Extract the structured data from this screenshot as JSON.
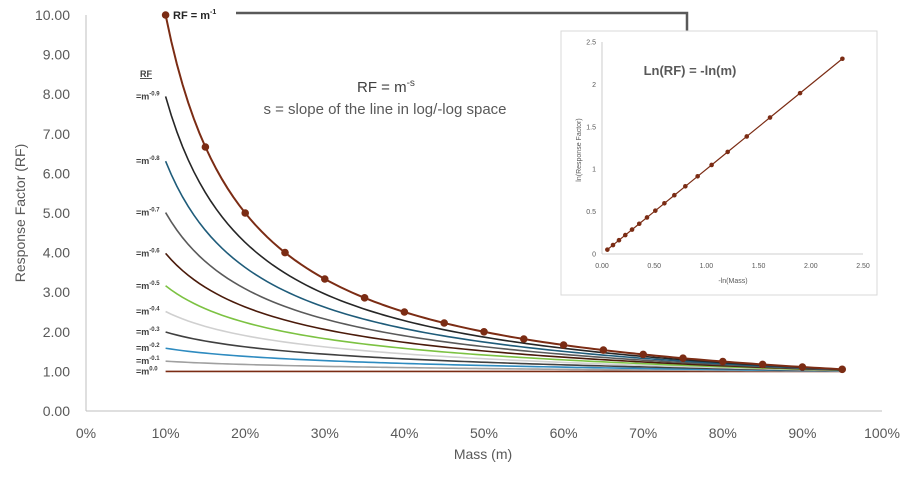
{
  "chart_data": [
    {
      "type": "line",
      "title": "",
      "xlabel": "Mass (m)",
      "ylabel": "Response Factor (RF)",
      "x_ticks": [
        "0%",
        "10%",
        "20%",
        "30%",
        "40%",
        "50%",
        "60%",
        "70%",
        "80%",
        "90%",
        "100%"
      ],
      "y_ticks": [
        "0.00",
        "1.00",
        "2.00",
        "3.00",
        "4.00",
        "5.00",
        "6.00",
        "7.00",
        "8.00",
        "9.00",
        "10.00"
      ],
      "xlim": [
        0,
        1.0
      ],
      "ylim": [
        0,
        10
      ],
      "legend_title": "RF",
      "x": [
        0.1,
        0.15,
        0.2,
        0.25,
        0.3,
        0.35,
        0.4,
        0.45,
        0.5,
        0.55,
        0.6,
        0.65,
        0.7,
        0.75,
        0.8,
        0.85,
        0.9,
        0.95
      ],
      "series": [
        {
          "name": "=m",
          "exp": "-1",
          "s": 1.0,
          "color": "#7b2c14",
          "markers": true
        },
        {
          "name": "=m",
          "exp": "-0.9",
          "s": 0.9,
          "color": "#262626",
          "markers": false
        },
        {
          "name": "=m",
          "exp": "-0.8",
          "s": 0.8,
          "color": "#1f5c7a",
          "markers": false
        },
        {
          "name": "=m",
          "exp": "-0.7",
          "s": 0.7,
          "color": "#5a5a5a",
          "markers": false
        },
        {
          "name": "=m",
          "exp": "-0.6",
          "s": 0.6,
          "color": "#4a1a0a",
          "markers": false
        },
        {
          "name": "=m",
          "exp": "-0.5",
          "s": 0.5,
          "color": "#7cc242",
          "markers": false
        },
        {
          "name": "=m",
          "exp": "-0.4",
          "s": 0.4,
          "color": "#d0d0d0",
          "markers": false
        },
        {
          "name": "=m",
          "exp": "-0.3",
          "s": 0.3,
          "color": "#404040",
          "markers": false
        },
        {
          "name": "=m",
          "exp": "-0.2",
          "s": 0.2,
          "color": "#2e8bc0",
          "markers": false
        },
        {
          "name": "=m",
          "exp": "-0.1",
          "s": 0.1,
          "color": "#a0a0a0",
          "markers": false
        },
        {
          "name": "=m",
          "exp": "0.0",
          "s": 0.0,
          "color": "#7b2c14",
          "markers": false
        }
      ],
      "annotations": {
        "rf_top_label": "RF = m",
        "rf_top_exp": "-1",
        "equation_main": "RF = m",
        "equation_exp": "-s",
        "equation_sub": "s = slope of the line in log/-log space"
      }
    },
    {
      "type": "line",
      "title": "Ln(RF) = -ln(m)",
      "xlabel": "-ln(Mass)",
      "ylabel": "ln(Response Factor)",
      "x_ticks": [
        "0.00",
        "0.50",
        "1.00",
        "1.50",
        "2.00",
        "2.50"
      ],
      "y_ticks": [
        "0",
        "0.5",
        "1",
        "1.5",
        "2",
        "2.5"
      ],
      "xlim": [
        0,
        2.5
      ],
      "ylim": [
        0,
        2.5
      ],
      "x": [
        0.0513,
        0.1054,
        0.1625,
        0.2231,
        0.2877,
        0.3567,
        0.4308,
        0.5108,
        0.5978,
        0.6931,
        0.7985,
        0.9163,
        1.0498,
        1.204,
        1.3863,
        1.6094,
        1.8971,
        2.3026
      ],
      "y": [
        0.0513,
        0.1054,
        0.1625,
        0.2231,
        0.2877,
        0.3567,
        0.4308,
        0.5108,
        0.5978,
        0.6931,
        0.7985,
        0.9163,
        1.0498,
        1.204,
        1.3863,
        1.6094,
        1.8971,
        2.3026
      ],
      "color": "#7b2c14"
    }
  ]
}
